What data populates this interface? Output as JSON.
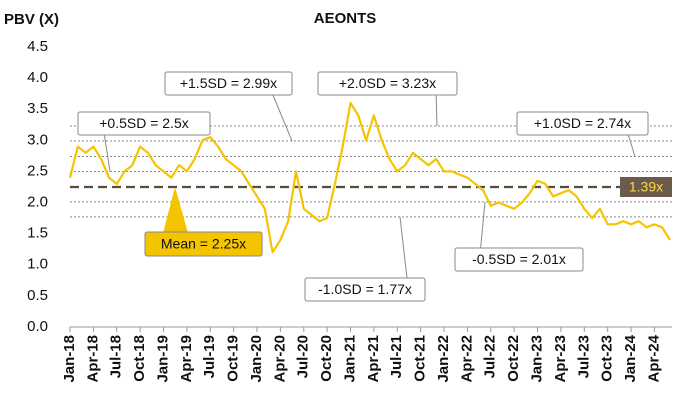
{
  "chart_data": {
    "type": "line",
    "title": "AEONTS",
    "y_axis_label": "PBV (X)",
    "categories": [
      "Jan-18",
      null,
      null,
      "Apr-18",
      null,
      null,
      "Jul-18",
      null,
      null,
      "Oct-18",
      null,
      null,
      "Jan-19",
      null,
      null,
      "Apr-19",
      null,
      null,
      "Jul-19",
      null,
      null,
      "Oct-19",
      null,
      null,
      "Jan-20",
      null,
      null,
      "Apr-20",
      null,
      null,
      "Jul-20",
      null,
      null,
      "Oct-20",
      null,
      null,
      "Jan-21",
      null,
      null,
      "Apr-21",
      null,
      null,
      "Jul-21",
      null,
      null,
      "Oct-21",
      null,
      null,
      "Jan-22",
      null,
      null,
      "Apr-22",
      null,
      null,
      "Jul-22",
      null,
      null,
      "Oct-22",
      null,
      null,
      "Jan-23",
      null,
      null,
      "Apr-23",
      null,
      null,
      "Jul-23",
      null,
      null,
      "Oct-23",
      null,
      null,
      "Jan-24",
      null,
      null,
      "Apr-24",
      null,
      null
    ],
    "series": [
      {
        "name": "AEONTS",
        "color": "#f5c400",
        "values": [
          2.4,
          2.9,
          2.8,
          2.9,
          2.7,
          2.4,
          2.3,
          2.5,
          2.6,
          2.9,
          2.8,
          2.6,
          2.5,
          2.4,
          2.6,
          2.5,
          2.7,
          3.0,
          3.05,
          2.9,
          2.7,
          2.6,
          2.5,
          2.3,
          2.1,
          1.9,
          1.2,
          1.4,
          1.7,
          2.5,
          1.9,
          1.8,
          1.7,
          1.75,
          2.3,
          2.9,
          3.6,
          3.4,
          3.0,
          3.4,
          3.0,
          2.7,
          2.5,
          2.6,
          2.8,
          2.7,
          2.6,
          2.7,
          2.5,
          2.5,
          2.45,
          2.4,
          2.3,
          2.2,
          1.95,
          2.0,
          1.95,
          1.9,
          2.0,
          2.15,
          2.35,
          2.3,
          2.1,
          2.15,
          2.2,
          2.1,
          1.9,
          1.75,
          1.9,
          1.65,
          1.65,
          1.7,
          1.65,
          1.7,
          1.6,
          1.65,
          1.6,
          1.4
        ]
      }
    ],
    "bands": [
      {
        "label": "+0.5SD = 2.5x",
        "value": 2.5
      },
      {
        "label": "+1.5SD = 2.99x",
        "value": 2.99
      },
      {
        "label": "+2.0SD = 3.23x",
        "value": 3.23
      },
      {
        "label": "+1.0SD = 2.74x",
        "value": 2.74
      },
      {
        "label": "-1.0SD = 1.77x",
        "value": 1.77
      },
      {
        "label": "-0.5SD = 2.01x",
        "value": 2.01
      }
    ],
    "mean": {
      "label": "Mean = 2.25x",
      "value": 2.25,
      "color": "#5a4a3a"
    },
    "current_label": "1.39x",
    "ylim": [
      0,
      4.5
    ],
    "yticks": [
      {
        "value": 0,
        "label": "0.0"
      },
      0.5,
      {
        "value": 1,
        "label": "1.0"
      },
      1.5,
      {
        "value": 2,
        "label": "2.0"
      },
      2.5,
      {
        "value": 3,
        "label": "3.0"
      },
      3.5,
      {
        "value": 4,
        "label": "4.0"
      },
      4.5
    ]
  }
}
